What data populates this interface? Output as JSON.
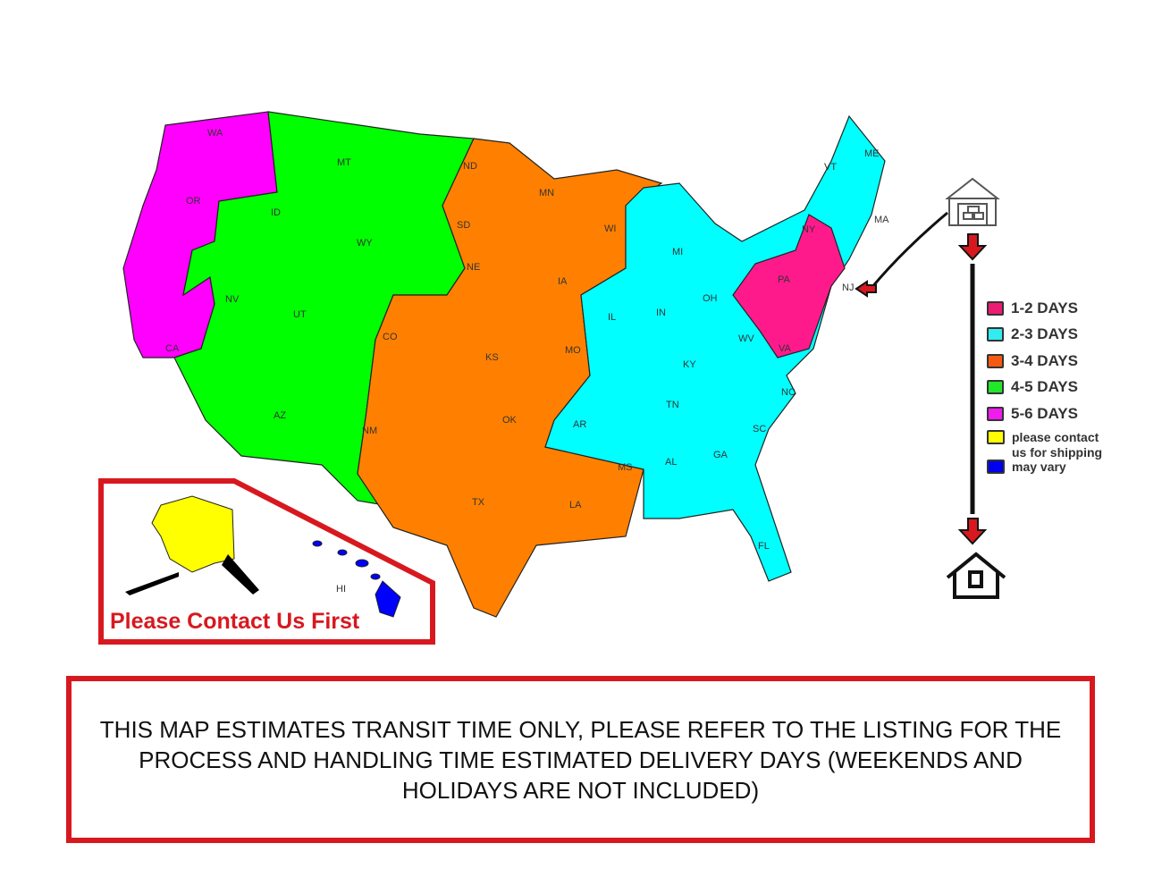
{
  "legend": [
    {
      "label": "1-2 DAYS",
      "color": "#ec1c72"
    },
    {
      "label": "2-3 DAYS",
      "color": "#33ecf0"
    },
    {
      "label": "3-4 DAYS",
      "color": "#f45a12"
    },
    {
      "label": "4-5 DAYS",
      "color": "#21e629"
    },
    {
      "label": "5-6 DAYS",
      "color": "#ef1bef"
    }
  ],
  "legend_note": {
    "lines": [
      "please contact",
      "us for shipping",
      "may vary"
    ],
    "colors": [
      "#ffff00",
      "#0000ee"
    ]
  },
  "zone_colors": {
    "pink": "#ff1a8c",
    "cyan": "#00ffff",
    "orange": "#ff8000",
    "green": "#00ff00",
    "magenta": "#ff00ff",
    "yellow": "#ffff00",
    "blue": "#0000ff"
  },
  "states": [
    "WA",
    "OR",
    "CA",
    "NV",
    "ID",
    "MT",
    "WY",
    "UT",
    "AZ",
    "CO",
    "NM",
    "ND",
    "SD",
    "NE",
    "KS",
    "OK",
    "TX",
    "MN",
    "IA",
    "MO",
    "AR",
    "LA",
    "WI",
    "IL",
    "MI",
    "IN",
    "OH",
    "KY",
    "TN",
    "MS",
    "AL",
    "GA",
    "FL",
    "SC",
    "NC",
    "VA",
    "WV",
    "PA",
    "NY",
    "VT",
    "ME",
    "MA",
    "NJ",
    "AK",
    "HI"
  ],
  "inset_label": "Please Contact Us First",
  "notice": "THIS MAP ESTIMATES TRANSIT TIME ONLY, PLEASE REFER TO THE LISTING FOR THE PROCESS AND HANDLING TIME ESTIMATED DELIVERY DAYS (WEEKENDS AND HOLIDAYS ARE NOT INCLUDED)",
  "icons": [
    "warehouse-icon",
    "arrow-down-icon",
    "house-icon"
  ]
}
